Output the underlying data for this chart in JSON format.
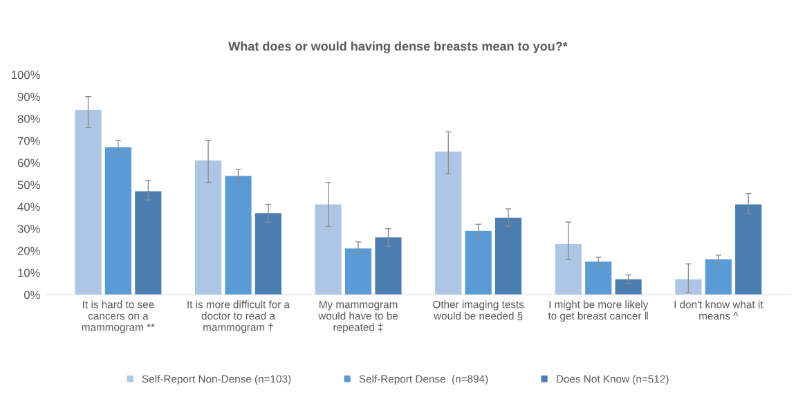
{
  "chart_data": {
    "type": "bar",
    "title": "What does or would having dense breasts mean to you?*",
    "categories": [
      "It is hard to see\ncancers on a\nmammogram **",
      "It is more difficult for a\ndoctor to read a\nmammogram †",
      "My mammogram\nwould have to be\nrepeated ‡",
      "Other imaging tests\nwould be needed §",
      "I might be more likely\nto get breast cancer ǁ",
      "I don't know what it\nmeans ^"
    ],
    "series": [
      {
        "name": "Self-Report Non-Dense (n=103)",
        "color": "#aec6e6",
        "values": [
          84,
          61,
          41,
          65,
          23,
          7
        ],
        "errors": [
          [
            76,
            90
          ],
          [
            51,
            70
          ],
          [
            31,
            51
          ],
          [
            55,
            74
          ],
          [
            16,
            33
          ],
          [
            1,
            14
          ]
        ]
      },
      {
        "name": "Self-Report Dense  (n=894)",
        "color": "#5b9bd5",
        "values": [
          67,
          54,
          21,
          29,
          15,
          16
        ],
        "errors": [
          [
            64,
            70
          ],
          [
            51,
            57
          ],
          [
            19,
            24
          ],
          [
            26,
            32
          ],
          [
            13,
            17
          ],
          [
            14,
            18
          ]
        ]
      },
      {
        "name": "Does Not Know (n=512)",
        "color": "#4a7eb0",
        "values": [
          47,
          37,
          26,
          35,
          7,
          41
        ],
        "errors": [
          [
            43,
            52
          ],
          [
            33,
            41
          ],
          [
            22,
            30
          ],
          [
            31,
            39
          ],
          [
            5,
            9
          ],
          [
            37,
            46
          ]
        ]
      }
    ],
    "ylim": [
      0,
      100
    ],
    "yticks": [
      {
        "value": 0,
        "label": "0%"
      },
      {
        "value": 10,
        "label": "10%"
      },
      {
        "value": 20,
        "label": "20%"
      },
      {
        "value": 30,
        "label": "30%"
      },
      {
        "value": 40,
        "label": "40%"
      },
      {
        "value": 50,
        "label": "50%"
      },
      {
        "value": 60,
        "label": "60%"
      },
      {
        "value": 70,
        "label": "70%"
      },
      {
        "value": 80,
        "label": "80%"
      },
      {
        "value": 90,
        "label": "90%"
      },
      {
        "value": 100,
        "label": "100%"
      }
    ],
    "grid": false,
    "legend": "bottom"
  }
}
